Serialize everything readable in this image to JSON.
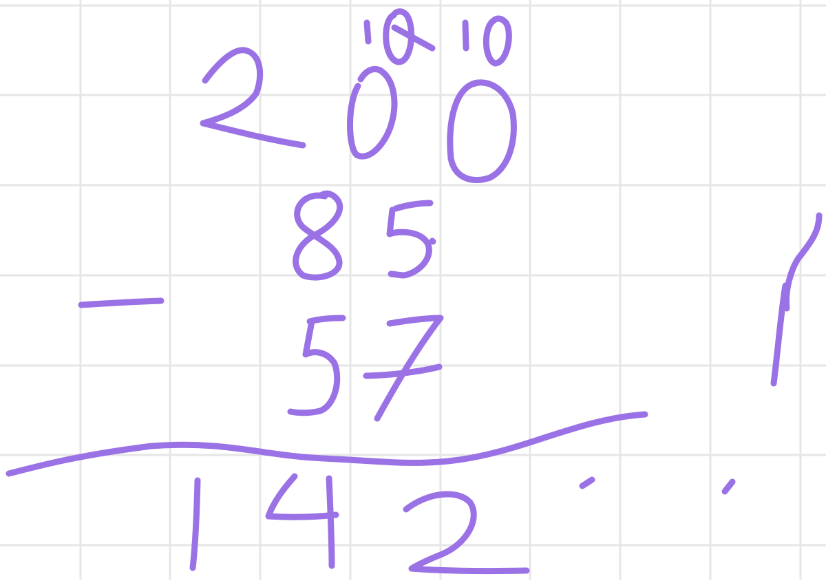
{
  "canvas": {
    "background_color": "#ffffff",
    "grid_color": "#e6e6e6",
    "ink_color": "#9a72e6"
  },
  "handwriting": {
    "top_number": "200",
    "borrow_marks": [
      "10",
      "10"
    ],
    "first_subtrahend": "85",
    "second_subtrahend": "57",
    "operator": "−",
    "answer": "142",
    "side_mark": "1"
  }
}
